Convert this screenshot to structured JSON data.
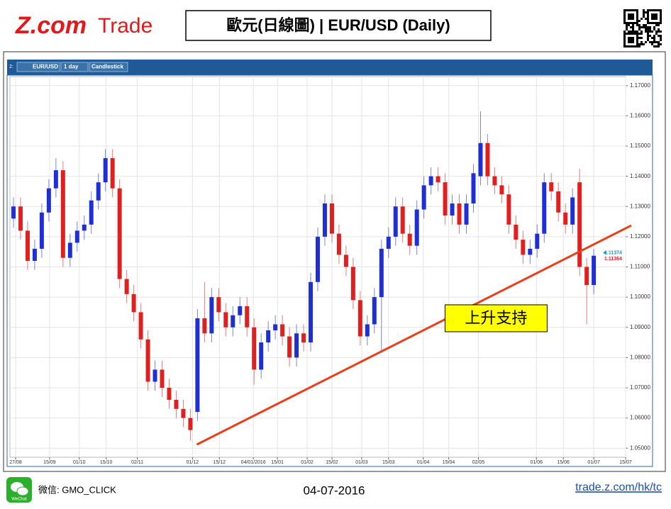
{
  "header": {
    "logo_brand": "Z.com",
    "logo_product": "Trade",
    "title": "歐元(日線圖) | EUR/USD (Daily)"
  },
  "toolbar": {
    "slot": "2:",
    "symbol": "EUR/USD",
    "interval": "1 day",
    "style": "Candlestick"
  },
  "chart_data": {
    "type": "candlestick",
    "up_color": "#1f2fd6",
    "down_color": "#e0201f",
    "open": [
      1.126,
      1.13,
      1.122,
      1.112,
      1.116,
      1.128,
      1.136,
      1.142,
      1.113,
      1.118,
      1.122,
      1.124,
      1.132,
      1.138,
      1.146,
      1.136,
      1.106,
      1.101,
      1.095,
      1.086,
      1.072,
      1.076,
      1.07,
      1.066,
      1.063,
      1.06,
      1.062,
      1.093,
      1.088,
      1.1,
      1.095,
      1.09,
      1.094,
      1.097,
      1.09,
      1.076,
      1.085,
      1.089,
      1.091,
      1.087,
      1.08,
      1.088,
      1.085,
      1.105,
      1.12,
      1.131,
      1.121,
      1.114,
      1.11,
      1.099,
      1.087,
      1.091,
      1.1,
      1.116,
      1.12,
      1.13,
      1.121,
      1.117,
      1.129,
      1.137,
      1.14,
      1.138,
      1.127,
      1.131,
      1.124,
      1.131,
      1.14,
      1.151,
      1.14,
      1.137,
      1.134,
      1.124,
      1.119,
      1.114,
      1.116,
      1.121,
      1.138,
      1.135,
      1.128,
      1.124,
      1.138,
      1.11,
      1.104
    ],
    "high": [
      1.133,
      1.133,
      1.125,
      1.119,
      1.131,
      1.139,
      1.146,
      1.145,
      1.121,
      1.125,
      1.127,
      1.135,
      1.141,
      1.149,
      1.149,
      1.139,
      1.109,
      1.104,
      1.098,
      1.089,
      1.079,
      1.079,
      1.073,
      1.069,
      1.066,
      1.063,
      1.096,
      1.105,
      1.103,
      1.103,
      1.098,
      1.097,
      1.1,
      1.1,
      1.093,
      1.088,
      1.092,
      1.094,
      1.094,
      1.09,
      1.091,
      1.091,
      1.108,
      1.123,
      1.134,
      1.134,
      1.124,
      1.117,
      1.113,
      1.102,
      1.094,
      1.103,
      1.119,
      1.123,
      1.133,
      1.133,
      1.124,
      1.132,
      1.14,
      1.143,
      1.143,
      1.141,
      1.134,
      1.134,
      1.134,
      1.144,
      1.1615,
      1.154,
      1.143,
      1.14,
      1.137,
      1.127,
      1.122,
      1.119,
      1.124,
      1.141,
      1.141,
      1.138,
      1.131,
      1.136,
      1.1425,
      1.113,
      1.116
    ],
    "low": [
      1.123,
      1.119,
      1.109,
      1.109,
      1.113,
      1.125,
      1.133,
      1.11,
      1.11,
      1.115,
      1.119,
      1.121,
      1.129,
      1.135,
      1.133,
      1.103,
      1.098,
      1.092,
      1.083,
      1.069,
      1.069,
      1.067,
      1.063,
      1.06,
      1.057,
      1.0525,
      1.059,
      1.085,
      1.085,
      1.092,
      1.087,
      1.087,
      1.091,
      1.087,
      1.071,
      1.073,
      1.082,
      1.086,
      1.084,
      1.077,
      1.077,
      1.082,
      1.082,
      1.102,
      1.117,
      1.118,
      1.111,
      1.107,
      1.096,
      1.084,
      1.084,
      1.088,
      1.082,
      1.113,
      1.117,
      1.118,
      1.114,
      1.114,
      1.126,
      1.134,
      1.135,
      1.124,
      1.124,
      1.121,
      1.121,
      1.128,
      1.137,
      1.137,
      1.134,
      1.131,
      1.121,
      1.116,
      1.111,
      1.111,
      1.113,
      1.118,
      1.132,
      1.125,
      1.121,
      1.121,
      1.107,
      1.091,
      1.101
    ],
    "close": [
      1.13,
      1.122,
      1.112,
      1.116,
      1.128,
      1.136,
      1.142,
      1.113,
      1.118,
      1.122,
      1.124,
      1.132,
      1.138,
      1.146,
      1.136,
      1.106,
      1.101,
      1.095,
      1.086,
      1.072,
      1.076,
      1.07,
      1.066,
      1.063,
      1.06,
      1.056,
      1.093,
      1.088,
      1.1,
      1.095,
      1.09,
      1.094,
      1.097,
      1.09,
      1.076,
      1.085,
      1.089,
      1.091,
      1.087,
      1.08,
      1.088,
      1.085,
      1.105,
      1.12,
      1.131,
      1.121,
      1.114,
      1.11,
      1.099,
      1.087,
      1.091,
      1.1,
      1.116,
      1.12,
      1.13,
      1.121,
      1.117,
      1.129,
      1.137,
      1.14,
      1.138,
      1.127,
      1.131,
      1.124,
      1.131,
      1.141,
      1.151,
      1.14,
      1.137,
      1.134,
      1.124,
      1.119,
      1.114,
      1.116,
      1.121,
      1.138,
      1.135,
      1.128,
      1.124,
      1.133,
      1.11,
      1.104,
      1.1137
    ],
    "xlim": [
      0,
      87
    ],
    "xticks": [
      {
        "value": 0.8,
        "label": "27/08"
      },
      {
        "value": 5.6,
        "label": "15/09"
      },
      {
        "value": 9.8,
        "label": "01/10"
      },
      {
        "value": 13.6,
        "label": "15/10"
      },
      {
        "value": 18.0,
        "label": "02/11"
      },
      {
        "value": 25.8,
        "label": "01/12"
      },
      {
        "value": 29.6,
        "label": "15/12"
      },
      {
        "value": 34.4,
        "label": "04/01/2016"
      },
      {
        "value": 37.8,
        "label": "15/01"
      },
      {
        "value": 42.0,
        "label": "01/02"
      },
      {
        "value": 45.5,
        "label": "15/02"
      },
      {
        "value": 49.7,
        "label": "01/03"
      },
      {
        "value": 53.5,
        "label": "15/03"
      },
      {
        "value": 58.4,
        "label": "01/04"
      },
      {
        "value": 62.0,
        "label": "15/04"
      },
      {
        "value": 66.2,
        "label": "02/05"
      },
      {
        "value": 74.4,
        "label": "01/06"
      },
      {
        "value": 78.2,
        "label": "15/06"
      },
      {
        "value": 82.5,
        "label": "01/07"
      },
      {
        "value": 87.0,
        "label": "15/07"
      }
    ],
    "ylim": [
      1.047,
      1.173
    ],
    "yticks": [
      {
        "value": 1.05,
        "label": "1.05000"
      },
      {
        "value": 1.06,
        "label": "1.06000"
      },
      {
        "value": 1.07,
        "label": "1.07000"
      },
      {
        "value": 1.08,
        "label": "1.08000"
      },
      {
        "value": 1.09,
        "label": "1.09000"
      },
      {
        "value": 1.1,
        "label": "1.10000"
      },
      {
        "value": 1.11,
        "label": "1.11000"
      },
      {
        "value": 1.12,
        "label": "1.12000"
      },
      {
        "value": 1.13,
        "label": "1.13000"
      },
      {
        "value": 1.14,
        "label": "1.14000"
      },
      {
        "value": 1.15,
        "label": "1.15000"
      },
      {
        "value": 1.16,
        "label": "1.16000"
      },
      {
        "value": 1.17,
        "label": "1.17000"
      }
    ],
    "grid": true,
    "ask": 1.11374,
    "ask_color": "#1e90d8",
    "bid": 1.11364,
    "bid_color": "#e0201f",
    "trendline": {
      "x": [
        26.4,
        87.8
      ],
      "y": [
        1.0512,
        1.1237
      ],
      "color": "#e8401c"
    },
    "annotation": {
      "text": "上升支持",
      "x": 68.7,
      "y": 1.093,
      "color": "#ffff00"
    }
  },
  "footer": {
    "wechat_icon": "WeChat",
    "wechat": "微信: GMO_CLICK",
    "date": "04-07-2016",
    "url": "trade.z.com/hk/tc"
  }
}
